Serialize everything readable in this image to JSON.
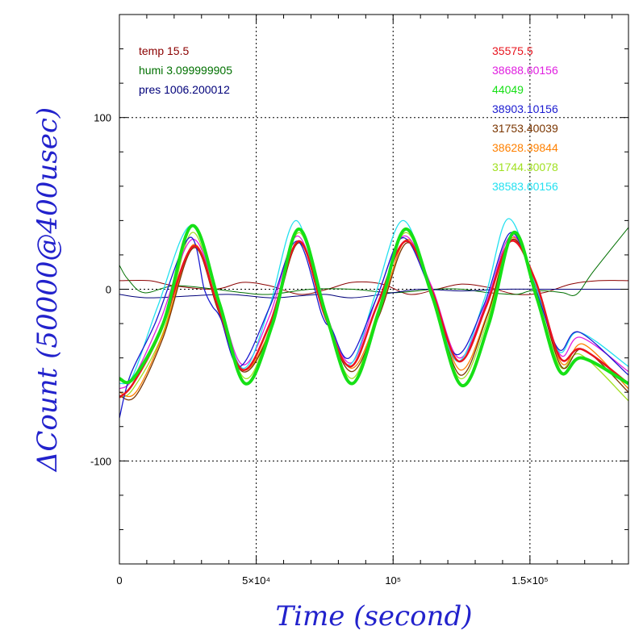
{
  "chart_data": {
    "type": "line",
    "xlabel": "Time (second)",
    "ylabel": "ΔCount (50000@400usec)",
    "xlim": [
      0,
      186000
    ],
    "ylim": [
      -160,
      160
    ],
    "grid": true,
    "x_ticks": [
      {
        "value": 0,
        "label": "0"
      },
      {
        "value": 50000,
        "label": "5×10⁴"
      },
      {
        "value": 100000,
        "label": "10⁵"
      },
      {
        "value": 150000,
        "label": "1.5×10⁵"
      }
    ],
    "y_ticks": [
      {
        "value": 100,
        "label": "100"
      },
      {
        "value": 0,
        "label": "0"
      },
      {
        "value": -100,
        "label": "-100"
      }
    ],
    "env_legend": [
      {
        "text": "temp 15.5",
        "color": "#8b0000"
      },
      {
        "text": "humi 3.099999905",
        "color": "#007000"
      },
      {
        "text": "pres 1006.200012",
        "color": "#00007a"
      }
    ],
    "series": [
      {
        "name": "35575.5",
        "color": "#e8141e",
        "width": 2.5,
        "x": [
          0,
          5000,
          15000,
          27000,
          36000,
          45000,
          55000,
          65500,
          75000,
          84500,
          94000,
          104500,
          114000,
          124000,
          134000,
          143000,
          152000,
          161000,
          169000,
          186000
        ],
        "y": [
          -63,
          -55,
          -25,
          25,
          -10,
          -47,
          -20,
          28,
          -15,
          -45,
          -10,
          28,
          0,
          -42,
          -10,
          28,
          5,
          -40,
          -35,
          -55
        ]
      },
      {
        "name": "38688.60156",
        "color": "#e01ee0",
        "width": 1.3,
        "x": [
          0,
          5000,
          15000,
          26500,
          36000,
          45000,
          55000,
          65000,
          75000,
          84500,
          94000,
          104000,
          114000,
          124000,
          134000,
          143000,
          152000,
          161000,
          168500,
          186000
        ],
        "y": [
          -58,
          -52,
          -18,
          29,
          -5,
          -44,
          -15,
          31,
          -12,
          -43,
          -5,
          31,
          2,
          -40,
          -8,
          31,
          5,
          -38,
          -28,
          -48
        ]
      },
      {
        "name": "44049",
        "color": "#16e016",
        "width": 4,
        "x": [
          0,
          5000,
          16000,
          26500,
          36500,
          46000,
          56000,
          65500,
          75500,
          85000,
          95000,
          104500,
          114500,
          125000,
          135000,
          144000,
          152500,
          161000,
          169000,
          186000
        ],
        "y": [
          -52,
          -52,
          -20,
          37,
          -8,
          -55,
          -20,
          35,
          -15,
          -55,
          -12,
          35,
          -5,
          -56,
          -20,
          33,
          -5,
          -48,
          -40,
          -55
        ]
      },
      {
        "name": "38903.10156",
        "color": "#1a1ad0",
        "width": 1.3,
        "x": [
          0,
          4000,
          13000,
          25500,
          31000,
          34000,
          37000,
          44000,
          55000,
          65000,
          74000,
          77500,
          84000,
          94000,
          103500,
          113500,
          123000,
          133000,
          143000,
          152000,
          160500,
          168000,
          186000
        ],
        "y": [
          -75,
          -50,
          -20,
          30,
          0,
          -10,
          -17,
          -45,
          -10,
          28,
          -15,
          -23,
          -40,
          -5,
          30,
          0,
          -38,
          -10,
          33,
          0,
          -35,
          -25,
          -50
        ]
      },
      {
        "name": "31753.40039",
        "color": "#7a3500",
        "width": 1.3,
        "x": [
          0,
          6000,
          16000,
          27000,
          36000,
          45000,
          55000,
          65500,
          75500,
          85000,
          95000,
          105000,
          114500,
          124500,
          134500,
          143500,
          152500,
          161500,
          169500,
          186000
        ],
        "y": [
          -62,
          -62,
          -28,
          24,
          -12,
          -48,
          -25,
          27,
          -18,
          -48,
          -15,
          27,
          -3,
          -50,
          -15,
          29,
          0,
          -45,
          -35,
          -60
        ]
      },
      {
        "name": "38628.39844",
        "color": "#ff8000",
        "width": 1.3,
        "x": [
          0,
          6000,
          16000,
          27000,
          36000,
          45000,
          55000,
          65500,
          75500,
          85000,
          95000,
          105000,
          114500,
          124500,
          134500,
          143500,
          152500,
          161500,
          169500,
          186000
        ],
        "y": [
          -60,
          -60,
          -26,
          26,
          -11,
          -47,
          -24,
          28,
          -16,
          -46,
          -13,
          29,
          -3,
          -47,
          -14,
          30,
          1,
          -43,
          -32,
          -58
        ]
      },
      {
        "name": "31744.30078",
        "color": "#a0e020",
        "width": 1.3,
        "x": [
          0,
          5000,
          16000,
          26500,
          36000,
          46000,
          55500,
          65500,
          75000,
          85000,
          94500,
          104500,
          114500,
          124500,
          134500,
          143500,
          152500,
          161000,
          168500,
          186000
        ],
        "y": [
          -63,
          -58,
          -25,
          33,
          -10,
          -52,
          -20,
          33,
          -15,
          -52,
          -12,
          33,
          -5,
          -52,
          -18,
          32,
          -3,
          -45,
          -38,
          -65
        ]
      },
      {
        "name": "38583.60156",
        "color": "#22e0f0",
        "width": 1.3,
        "x": [
          0,
          5000,
          14000,
          26000,
          35500,
          45000,
          54500,
          64500,
          74000,
          84000,
          93500,
          103500,
          113500,
          123500,
          133500,
          142000,
          151500,
          160500,
          168000,
          186000
        ],
        "y": [
          -55,
          -50,
          -10,
          37,
          -3,
          -46,
          -12,
          40,
          -10,
          -44,
          -3,
          40,
          2,
          -42,
          -5,
          41,
          5,
          -36,
          -25,
          -45
        ]
      },
      {
        "name": "",
        "color": "#8b0000",
        "width": 1,
        "x": [
          0,
          11000,
          20000,
          35000,
          45000,
          55000,
          66000,
          76000,
          85000,
          96000,
          106000,
          116000,
          125000,
          135000,
          145000,
          155000,
          165000,
          175000,
          186000
        ],
        "y": [
          5,
          5,
          2,
          0,
          4,
          2,
          -3,
          0,
          4,
          3,
          -3,
          0,
          3,
          1,
          -3,
          -2,
          3,
          5,
          5
        ]
      },
      {
        "name": "",
        "color": "#007000",
        "width": 1,
        "x": [
          0,
          3000,
          9000,
          20000,
          35000,
          45000,
          55000,
          70000,
          85000,
          100000,
          115000,
          125000,
          135000,
          145000,
          150000,
          156000,
          162000,
          167000,
          173000,
          186000
        ],
        "y": [
          14,
          6,
          -2,
          2,
          0,
          -2,
          -3,
          0,
          0,
          -2,
          0,
          0,
          -2,
          -3,
          -1,
          -1,
          -2,
          -3,
          10,
          36
        ]
      },
      {
        "name": "",
        "color": "#00007a",
        "width": 1,
        "x": [
          0,
          10000,
          25000,
          40000,
          55000,
          65000,
          75000,
          85000,
          100000,
          110000,
          125000,
          140000,
          155000,
          170000,
          186000
        ],
        "y": [
          -3,
          -5,
          -4,
          -3,
          -5,
          -4,
          -3,
          -5,
          -2,
          0,
          -1,
          0,
          0,
          0,
          0
        ]
      }
    ]
  }
}
